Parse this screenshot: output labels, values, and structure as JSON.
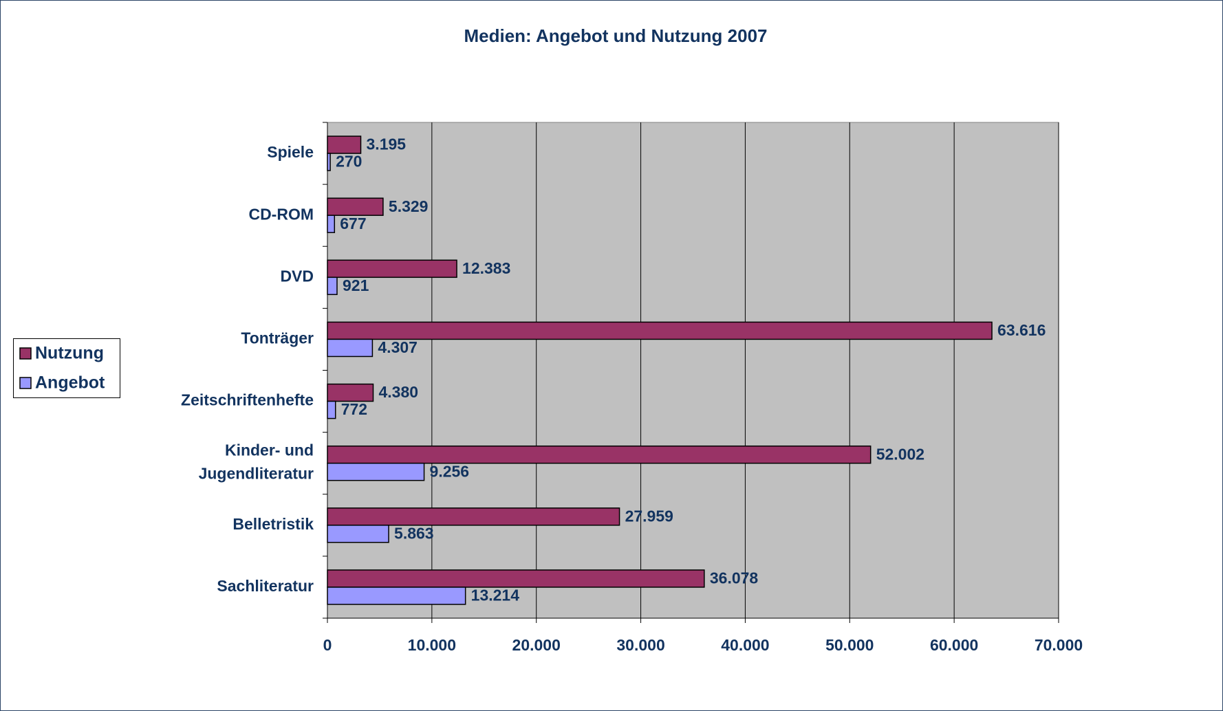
{
  "chart_data": {
    "type": "bar",
    "orientation": "horizontal",
    "title": "Medien: Angebot und Nutzung 2007",
    "categories": [
      "Spiele",
      "CD-ROM",
      "DVD",
      "Tonträger",
      "Zeitschriftenhefte",
      "Kinder- und Jugendliteratur",
      "Belletristik",
      "Sachliteratur"
    ],
    "series": [
      {
        "name": "Nutzung",
        "color": "#993366",
        "values": [
          3195,
          5329,
          12383,
          63616,
          4380,
          52002,
          27959,
          36078
        ],
        "value_labels": [
          "3.195",
          "5.329",
          "12.383",
          "63.616",
          "4.380",
          "52.002",
          "27.959",
          "36.078"
        ]
      },
      {
        "name": "Angebot",
        "color": "#9999ff",
        "values": [
          270,
          677,
          921,
          4307,
          772,
          9256,
          5863,
          13214
        ],
        "value_labels": [
          "270",
          "677",
          "921",
          "4.307",
          "772",
          "9.256",
          "5.863",
          "13.214"
        ]
      }
    ],
    "xlim": [
      0,
      70000
    ],
    "xticks": [
      0,
      {
        "value": 10000,
        "label": "10.000"
      },
      {
        "value": 20000,
        "label": "20.000"
      },
      {
        "value": 30000,
        "label": "30.000"
      },
      {
        "value": 40000,
        "label": "40.000"
      },
      {
        "value": 50000,
        "label": "50.000"
      },
      {
        "value": 60000,
        "label": "60.000"
      },
      {
        "value": 70000,
        "label": "70.000"
      }
    ],
    "grid": true,
    "legend": "left",
    "background": "#c0c0c0"
  }
}
